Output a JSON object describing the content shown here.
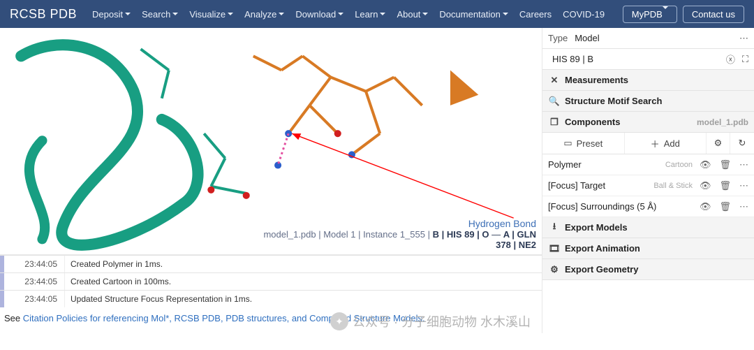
{
  "brand": "RCSB PDB",
  "nav": {
    "items": [
      "Deposit",
      "Search",
      "Visualize",
      "Analyze",
      "Download",
      "Learn",
      "About",
      "Documentation"
    ],
    "plain": [
      "Careers",
      "COVID-19"
    ],
    "mypdb": "MyPDB",
    "contact": "Contact us"
  },
  "viewer": {
    "colors": {
      "chainA": "#189e82",
      "chainB": "#d87a24",
      "oxygen": "#d11f1f",
      "nitrogen": "#2b5ecb",
      "hbond": "#e34fa0",
      "arrow": "#ff0000"
    },
    "tooltip": {
      "title": "Hydrogen Bond",
      "line1_pre": "model_1.pdb | Model 1 | Instance 1_555 | ",
      "line1_bold": "B | HIS 89 | O",
      "dash": " — ",
      "line1_bold2": "A | GLN",
      "line2_bold": "378 | NE2"
    }
  },
  "log": [
    {
      "time": "23:44:05",
      "msg": "Created Polymer in 1ms."
    },
    {
      "time": "23:44:05",
      "msg": "Created Cartoon in 100ms."
    },
    {
      "time": "23:44:05",
      "msg": "Updated Structure Focus Representation in 1ms."
    }
  ],
  "citation": {
    "pre": "See ",
    "link": "Citation Policies for referencing Mol*, RCSB PDB, PDB structures, and Computed Structure Models.",
    "watermark": "公众号 · 分子细胞动物 水木溪山"
  },
  "panel": {
    "type_label": "Type",
    "type_value": "Model",
    "selection": "HIS 89 | B",
    "sections": {
      "measurements": "Measurements",
      "motif": "Structure Motif Search",
      "components": "Components",
      "components_file": "model_1.pdb",
      "preset": "Preset",
      "add": "Add",
      "export_models": "Export Models",
      "export_anim": "Export Animation",
      "export_geom": "Export Geometry"
    },
    "components_list": [
      {
        "name": "Polymer",
        "style": "Cartoon"
      },
      {
        "name": "[Focus] Target",
        "style": "Ball & Stick"
      },
      {
        "name": "[Focus] Surroundings (5 Å)",
        "style": ""
      }
    ]
  }
}
